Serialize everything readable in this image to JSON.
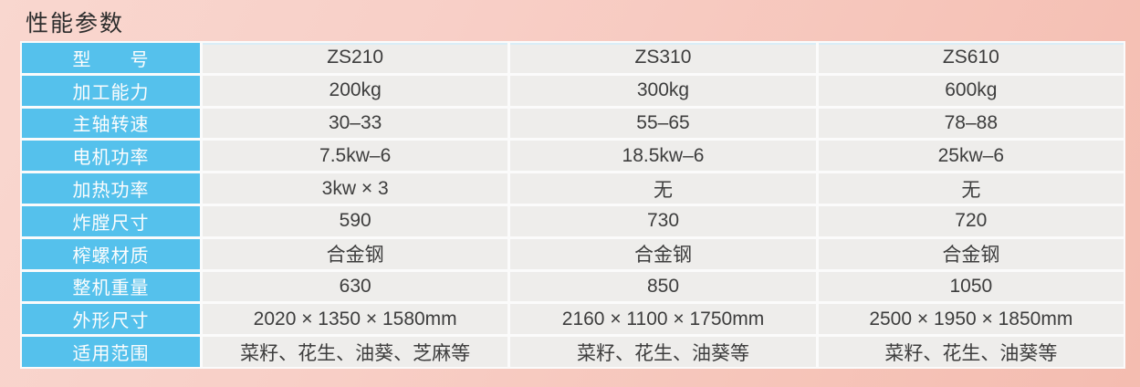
{
  "page_title": "性能参数",
  "table": {
    "rows": [
      {
        "label": "型　　号",
        "values": [
          "ZS210",
          "ZS310",
          "ZS610"
        ]
      },
      {
        "label": "加工能力",
        "values": [
          "200kg",
          "300kg",
          "600kg"
        ]
      },
      {
        "label": "主轴转速",
        "values": [
          "30–33",
          "55–65",
          "78–88"
        ]
      },
      {
        "label": "电机功率",
        "values": [
          "7.5kw–6",
          "18.5kw–6",
          "25kw–6"
        ]
      },
      {
        "label": "加热功率",
        "values": [
          "3kw × 3",
          "无",
          "无"
        ]
      },
      {
        "label": "炸膛尺寸",
        "values": [
          "590",
          "730",
          "720"
        ]
      },
      {
        "label": "榨螺材质",
        "values": [
          "合金钢",
          "合金钢",
          "合金钢"
        ]
      },
      {
        "label": "整机重量",
        "values": [
          "630",
          "850",
          "1050"
        ]
      },
      {
        "label": "外形尺寸",
        "values": [
          "2020 × 1350 × 1580mm",
          "2160 × 1100 × 1750mm",
          "2500 × 1950 × 1850mm"
        ]
      },
      {
        "label": "适用范围",
        "values": [
          "菜籽、花生、油葵、芝麻等",
          "菜籽、花生、油葵等",
          "菜籽、花生、油葵等"
        ]
      }
    ],
    "colors": {
      "header_blue": "#55c1ec",
      "cell_gray": "#eeedeb",
      "separator_white": "#fbfbfb",
      "background_pink": "#f6c5ba",
      "value_text": "#3d3d3d",
      "label_text": "#fdfdfd"
    }
  }
}
